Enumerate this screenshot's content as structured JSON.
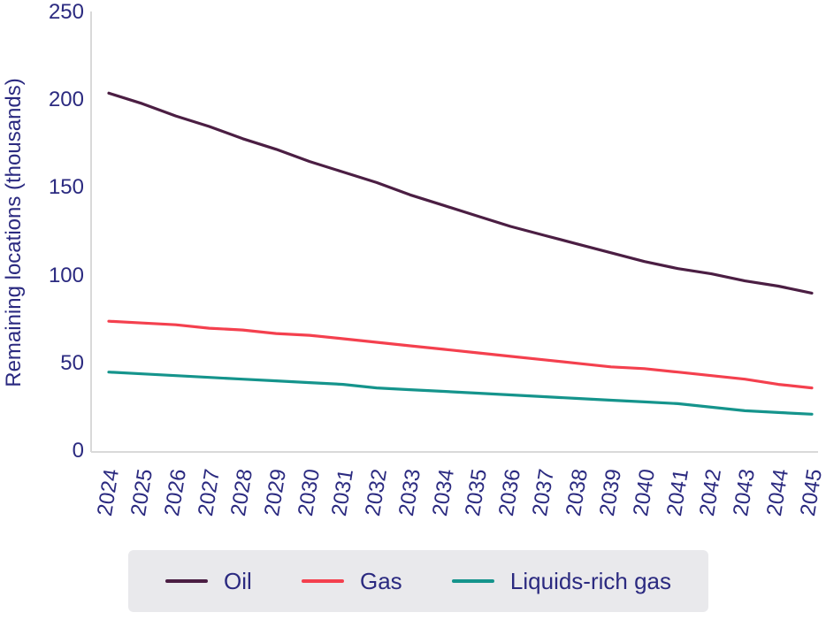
{
  "chart_data": {
    "type": "line",
    "title": "",
    "xlabel": "",
    "ylabel": "Remaining locations (thousands)",
    "ylim": [
      0,
      250
    ],
    "yticks": [
      0,
      50,
      100,
      150,
      200,
      250
    ],
    "grid": false,
    "legend_position": "bottom",
    "categories": [
      "2024",
      "2025",
      "2026",
      "2027",
      "2028",
      "2029",
      "2030",
      "2031",
      "2032",
      "2033",
      "2034",
      "2035",
      "2036",
      "2037",
      "2038",
      "2039",
      "2040",
      "2041",
      "2042",
      "2043",
      "2044",
      "2045"
    ],
    "series": [
      {
        "name": "Oil",
        "color": "#4b1e43",
        "values": [
          204,
          198,
          191,
          185,
          178,
          172,
          165,
          159,
          153,
          146,
          140,
          134,
          128,
          123,
          118,
          113,
          108,
          104,
          101,
          97,
          94,
          90
        ]
      },
      {
        "name": "Gas",
        "color": "#f4404e",
        "values": [
          74,
          73,
          72,
          70,
          69,
          67,
          66,
          64,
          62,
          60,
          58,
          56,
          54,
          52,
          50,
          48,
          47,
          45,
          43,
          41,
          38,
          36
        ]
      },
      {
        "name": "Liquids-rich gas",
        "color": "#15948c",
        "values": [
          45,
          44,
          43,
          42,
          41,
          40,
          39,
          38,
          36,
          35,
          34,
          33,
          32,
          31,
          30,
          29,
          28,
          27,
          25,
          23,
          22,
          21
        ]
      }
    ]
  },
  "colors": {
    "axis_line": "#d9d9d9",
    "tick_text": "#2b2a80",
    "legend_background": "#e9e9ec"
  }
}
